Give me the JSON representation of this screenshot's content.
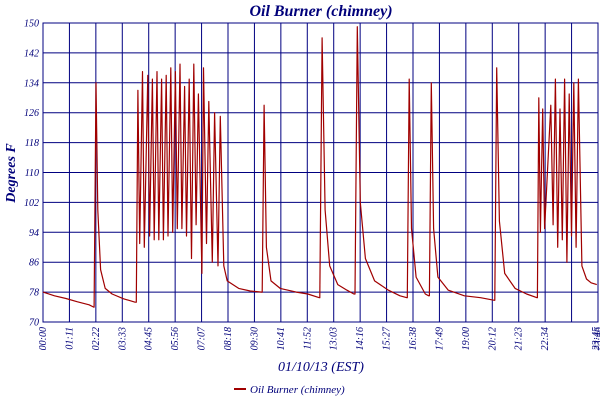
{
  "chart_data": {
    "type": "line",
    "title": "Oil Burner (chimney)",
    "xlabel": "01/10/13 (EST)",
    "ylabel": "Degrees F",
    "ylim": [
      70,
      150
    ],
    "xlim": [
      0,
      24.1
    ],
    "grid": true,
    "legend_position": "bottom-center",
    "y_ticks": [
      "70",
      "78",
      "86",
      "94",
      "102",
      "110",
      "118",
      "126",
      "134",
      "142",
      "150"
    ],
    "x_tick_labels": [
      "00:00",
      "01:11",
      "02:22",
      "03:33",
      "04:45",
      "05:56",
      "07:07",
      "08:18",
      "09:30",
      "10:41",
      "11:52",
      "13:03",
      "14:16",
      "15:27",
      "16:38",
      "17:49",
      "19:00",
      "20:12",
      "21:23",
      "22:34",
      "23:45",
      "23:46"
    ],
    "colors": {
      "grid": "#000080",
      "series": "#a00000",
      "text": "#00007a"
    },
    "series": [
      {
        "name": "Oil Burner (chimney)",
        "x_unit": "hours",
        "points": [
          [
            0.0,
            78.0
          ],
          [
            0.5,
            77.0
          ],
          [
            1.0,
            76.3
          ],
          [
            1.5,
            75.4
          ],
          [
            2.0,
            74.6
          ],
          [
            2.2,
            74.0
          ],
          [
            2.22,
            74.0
          ],
          [
            2.3,
            134.0
          ],
          [
            2.38,
            100.0
          ],
          [
            2.5,
            84.0
          ],
          [
            2.7,
            79.0
          ],
          [
            3.0,
            77.5
          ],
          [
            3.5,
            76.2
          ],
          [
            4.0,
            75.3
          ],
          [
            4.05,
            75.3
          ],
          [
            4.12,
            132.0
          ],
          [
            4.2,
            91.0
          ],
          [
            4.32,
            137.0
          ],
          [
            4.4,
            90.0
          ],
          [
            4.55,
            136.0
          ],
          [
            4.63,
            93.0
          ],
          [
            4.75,
            135.0
          ],
          [
            4.83,
            92.0
          ],
          [
            4.95,
            137.0
          ],
          [
            5.03,
            92.0
          ],
          [
            5.15,
            135.0
          ],
          [
            5.23,
            92.0
          ],
          [
            5.35,
            136.0
          ],
          [
            5.43,
            93.0
          ],
          [
            5.55,
            138.0
          ],
          [
            5.63,
            94.0
          ],
          [
            5.75,
            137.0
          ],
          [
            5.83,
            95.0
          ],
          [
            5.95,
            139.0
          ],
          [
            6.03,
            95.0
          ],
          [
            6.15,
            133.0
          ],
          [
            6.23,
            93.0
          ],
          [
            6.35,
            135.0
          ],
          [
            6.45,
            87.0
          ],
          [
            6.55,
            139.0
          ],
          [
            6.65,
            96.0
          ],
          [
            6.75,
            131.0
          ],
          [
            6.9,
            83.0
          ],
          [
            6.97,
            138.0
          ],
          [
            7.1,
            91.0
          ],
          [
            7.2,
            129.0
          ],
          [
            7.35,
            86.0
          ],
          [
            7.45,
            126.0
          ],
          [
            7.6,
            85.0
          ],
          [
            7.7,
            125.0
          ],
          [
            7.85,
            85.0
          ],
          [
            8.0,
            81.0
          ],
          [
            8.5,
            79.0
          ],
          [
            9.0,
            78.3
          ],
          [
            9.5,
            78.0
          ],
          [
            9.52,
            78.0
          ],
          [
            9.6,
            128.0
          ],
          [
            9.7,
            90.0
          ],
          [
            9.9,
            81.0
          ],
          [
            10.3,
            79.0
          ],
          [
            11.0,
            78.0
          ],
          [
            11.5,
            77.5
          ],
          [
            12.0,
            76.5
          ],
          [
            12.02,
            76.5
          ],
          [
            12.12,
            146.0
          ],
          [
            12.25,
            100.0
          ],
          [
            12.45,
            85.0
          ],
          [
            12.8,
            80.0
          ],
          [
            13.2,
            78.5
          ],
          [
            13.5,
            77.5
          ],
          [
            13.55,
            77.5
          ],
          [
            13.65,
            149.0
          ],
          [
            13.78,
            102.0
          ],
          [
            14.0,
            87.0
          ],
          [
            14.4,
            81.0
          ],
          [
            15.0,
            78.5
          ],
          [
            15.5,
            77.0
          ],
          [
            15.8,
            76.5
          ],
          [
            15.82,
            76.5
          ],
          [
            15.9,
            135.0
          ],
          [
            16.0,
            95.0
          ],
          [
            16.2,
            82.0
          ],
          [
            16.6,
            77.5
          ],
          [
            16.75,
            77.0
          ],
          [
            16.78,
            77.0
          ],
          [
            16.86,
            134.0
          ],
          [
            16.96,
            95.0
          ],
          [
            17.15,
            82.0
          ],
          [
            17.6,
            78.5
          ],
          [
            18.3,
            77.0
          ],
          [
            19.0,
            76.5
          ],
          [
            19.6,
            75.8
          ],
          [
            19.62,
            75.8
          ],
          [
            19.7,
            138.0
          ],
          [
            19.82,
            97.0
          ],
          [
            20.05,
            83.0
          ],
          [
            20.5,
            79.0
          ],
          [
            21.0,
            77.5
          ],
          [
            21.45,
            76.5
          ],
          [
            21.47,
            76.5
          ],
          [
            21.53,
            130.0
          ],
          [
            21.6,
            94.0
          ],
          [
            21.7,
            127.0
          ],
          [
            21.78,
            95.0
          ],
          [
            22.05,
            128.0
          ],
          [
            22.15,
            96.0
          ],
          [
            22.25,
            135.0
          ],
          [
            22.35,
            90.0
          ],
          [
            22.45,
            127.0
          ],
          [
            22.55,
            92.0
          ],
          [
            22.65,
            135.0
          ],
          [
            22.75,
            86.0
          ],
          [
            22.85,
            131.0
          ],
          [
            22.95,
            93.0
          ],
          [
            23.05,
            134.0
          ],
          [
            23.15,
            90.0
          ],
          [
            23.25,
            135.0
          ],
          [
            23.4,
            85.0
          ],
          [
            23.6,
            81.5
          ],
          [
            23.8,
            80.5
          ],
          [
            24.05,
            80.0
          ]
        ]
      }
    ]
  }
}
